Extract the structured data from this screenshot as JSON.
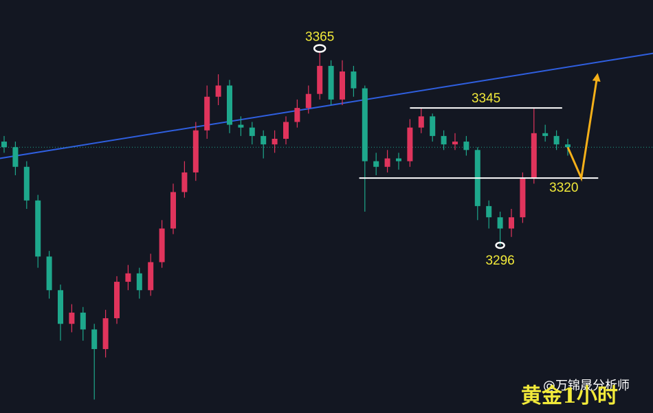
{
  "chart_data": {
    "type": "candlestick",
    "ylim": [
      3236.2,
      3383.5
    ],
    "up_color": "#e0345c",
    "down_color": "#1ea88c",
    "open": [
      3333,
      3331,
      3324,
      3312,
      3292,
      3280,
      3268,
      3272,
      3266,
      3259,
      3270,
      3283,
      3286,
      3280,
      3290,
      3302,
      3315,
      3322,
      3337,
      3349,
      3353,
      3339,
      3338,
      3335,
      3332,
      3334,
      3340,
      3345,
      3350,
      3360,
      3348,
      3358,
      3352,
      3326,
      3324,
      3327,
      3326,
      3338,
      3342,
      3335,
      3332,
      3333,
      3330,
      3310,
      3306,
      3302,
      3306,
      3320,
      3336,
      3335,
      3332
    ],
    "high": [
      3335,
      3333,
      3326,
      3314,
      3294,
      3282,
      3275,
      3274,
      3268,
      3273,
      3285,
      3289,
      3288,
      3293,
      3305,
      3318,
      3326,
      3340,
      3353,
      3357,
      3355,
      3342,
      3340,
      3337,
      3337,
      3342,
      3348,
      3353,
      3365,
      3362,
      3362,
      3360,
      3353,
      3329,
      3330,
      3329,
      3341,
      3345,
      3343,
      3337,
      3336,
      3335,
      3331,
      3312,
      3308,
      3309,
      3322,
      3345,
      3339,
      3337,
      3334
    ],
    "low": [
      3329,
      3321,
      3309,
      3288,
      3277,
      3262,
      3265,
      3262,
      3241,
      3256,
      3268,
      3280,
      3277,
      3278,
      3288,
      3300,
      3313,
      3319,
      3334,
      3346,
      3336,
      3335,
      3332,
      3327,
      3329,
      3332,
      3338,
      3343,
      3348,
      3346,
      3346,
      3349,
      3308,
      3321,
      3322,
      3323,
      3324,
      3336,
      3333,
      3330,
      3330,
      3328,
      3305,
      3302,
      3296,
      3299,
      3304,
      3318,
      3333,
      3330,
      3328
    ],
    "close": [
      3331,
      3324,
      3312,
      3292,
      3280,
      3268,
      3272,
      3266,
      3259,
      3270,
      3283,
      3286,
      3280,
      3290,
      3302,
      3315,
      3322,
      3337,
      3349,
      3353,
      3339,
      3338,
      3335,
      3332,
      3334,
      3340,
      3345,
      3350,
      3360,
      3348,
      3358,
      3352,
      3326,
      3324,
      3327,
      3326,
      3338,
      3342,
      3335,
      3332,
      3333,
      3330,
      3310,
      3306,
      3302,
      3306,
      3320,
      3336,
      3335,
      3332,
      3331
    ],
    "trendline": {
      "color": "#2f5fe0",
      "x": [
        -0.4,
        57.6
      ],
      "y": [
        3327,
        3364.5
      ]
    },
    "levels": [
      {
        "value": 3345,
        "label": "3345",
        "x": [
          36,
          49.5
        ],
        "color": "#ffffff"
      },
      {
        "value": 3320,
        "label": "3320",
        "x": [
          31.5,
          52.7
        ],
        "color": "#ffffff"
      }
    ],
    "marked_points": [
      {
        "value": 3365,
        "label": "3365",
        "index": 28
      },
      {
        "value": 3296,
        "label": "3296",
        "index": 44
      }
    ],
    "projection": {
      "color": "#f5b019",
      "x": [
        50,
        51.2,
        52.6
      ],
      "y": [
        3331,
        3320,
        3356
      ]
    },
    "watermark": {
      "handle": "@万锦晟分析师",
      "caption": "黄金1小时"
    }
  }
}
